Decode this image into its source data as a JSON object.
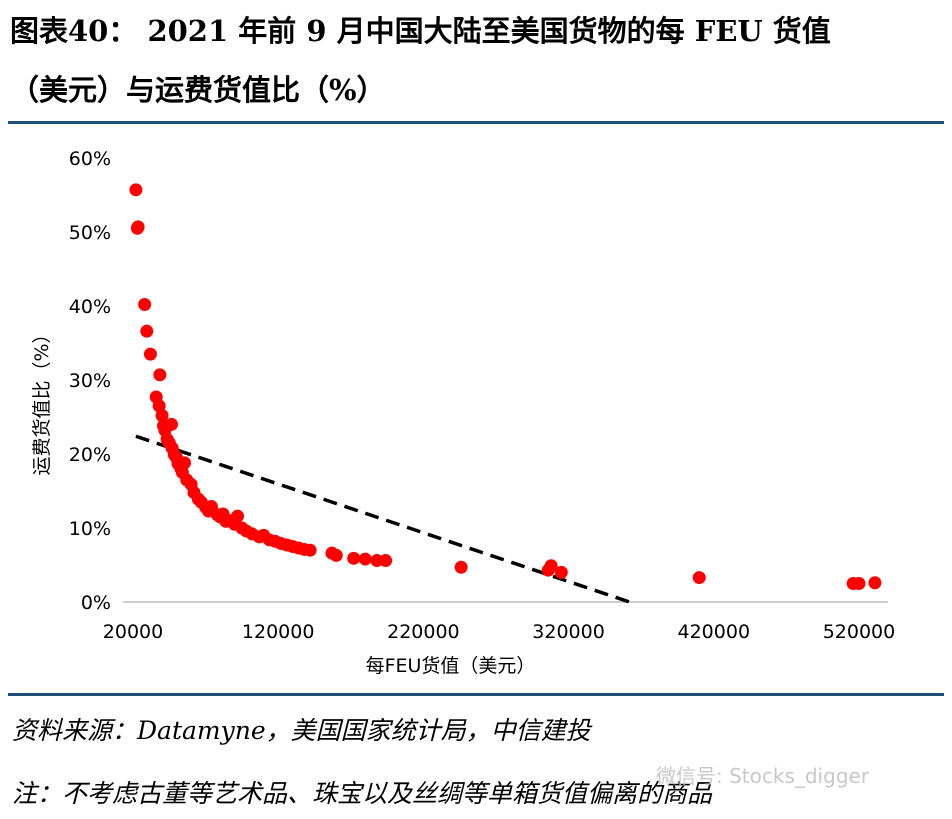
{
  "title": {
    "line1": "图表40：  2021 年前 9 月中国大陆至美国货物的每 FEU 货值",
    "line2": "（美元）与运费货值比（%）"
  },
  "footer": {
    "source": "资料来源：Datamyne，美国国家统计局，中信建投",
    "note": "注：不考虑古董等艺术品、珠宝以及丝绸等单箱货值偏离的商品"
  },
  "watermark": "微信号: Stocks_digger",
  "colors": {
    "points": "#ff0000",
    "trend": "#000000",
    "rule": "#1f4e79"
  },
  "chart_data": {
    "type": "scatter",
    "title": "",
    "xlabel": "每FEU货值（美元）",
    "ylabel": "运费货值比（%）",
    "xlim": [
      20000,
      540000
    ],
    "ylim": [
      0,
      60
    ],
    "xticks": [
      "20000",
      "120000",
      "220000",
      "320000",
      "420000",
      "520000"
    ],
    "yticks": [
      "0%",
      "10%",
      "20%",
      "30%",
      "40%",
      "50%",
      "60%"
    ],
    "grid": false,
    "legend": "none",
    "series": [
      {
        "points": [
          [
            22000,
            55.7
          ],
          [
            23000,
            50.5
          ],
          [
            23500,
            50.7
          ],
          [
            28000,
            40.2
          ],
          [
            29500,
            36.6
          ],
          [
            32000,
            33.5
          ],
          [
            36000,
            27.7
          ],
          [
            38000,
            26.5
          ],
          [
            38500,
            30.7
          ],
          [
            40000,
            25.2
          ],
          [
            41000,
            23.8
          ],
          [
            42000,
            23.2
          ],
          [
            43500,
            22.0
          ],
          [
            45000,
            21.5
          ],
          [
            46500,
            24.0
          ],
          [
            47000,
            20.8
          ],
          [
            48500,
            19.9
          ],
          [
            50000,
            19.5
          ],
          [
            51000,
            18.7
          ],
          [
            53000,
            18.0
          ],
          [
            54000,
            17.5
          ],
          [
            55500,
            18.8
          ],
          [
            57000,
            16.5
          ],
          [
            60000,
            15.9
          ],
          [
            62000,
            14.8
          ],
          [
            65000,
            13.9
          ],
          [
            67000,
            13.5
          ],
          [
            70000,
            12.8
          ],
          [
            72000,
            12.3
          ],
          [
            74000,
            12.9
          ],
          [
            78000,
            11.8
          ],
          [
            80000,
            11.5
          ],
          [
            82000,
            11.9
          ],
          [
            84000,
            10.9
          ],
          [
            87000,
            11.0
          ],
          [
            90000,
            10.5
          ],
          [
            92000,
            11.6
          ],
          [
            95000,
            10.0
          ],
          [
            98000,
            9.6
          ],
          [
            102000,
            9.2
          ],
          [
            107000,
            8.8
          ],
          [
            110000,
            9.0
          ],
          [
            114000,
            8.4
          ],
          [
            118000,
            8.2
          ],
          [
            122000,
            7.9
          ],
          [
            126000,
            7.7
          ],
          [
            130000,
            7.5
          ],
          [
            134000,
            7.3
          ],
          [
            138000,
            7.1
          ],
          [
            142000,
            7.0
          ],
          [
            157000,
            6.6
          ],
          [
            160000,
            6.3
          ],
          [
            172000,
            5.9
          ],
          [
            180000,
            5.8
          ],
          [
            188000,
            5.6
          ],
          [
            194000,
            5.6
          ],
          [
            246000,
            4.7
          ],
          [
            306000,
            4.3
          ],
          [
            308000,
            4.9
          ],
          [
            315000,
            4.0
          ],
          [
            410000,
            3.3
          ],
          [
            516000,
            2.5
          ],
          [
            520000,
            2.5
          ],
          [
            531000,
            2.6
          ]
        ]
      }
    ],
    "trendline": {
      "style": "dashed",
      "start": [
        22000,
        22.4
      ],
      "end": [
        362000,
        0
      ]
    }
  }
}
